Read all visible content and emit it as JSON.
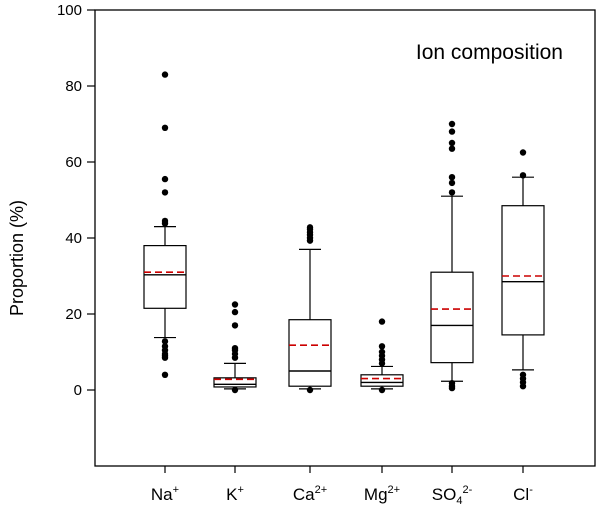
{
  "chart_data": {
    "type": "box",
    "title": "Ion composition",
    "xlabel": "",
    "ylabel": "Proportion (%)",
    "ylim": [
      -20,
      100
    ],
    "yticks": [
      0,
      20,
      40,
      60,
      80,
      100
    ],
    "grid": false,
    "median_color": "#000000",
    "mean_color": "#cc0000",
    "categories": [
      {
        "base": "Na",
        "sup": "+",
        "sub": ""
      },
      {
        "base": "K",
        "sup": "+",
        "sub": ""
      },
      {
        "base": "Ca",
        "sup": "2+",
        "sub": ""
      },
      {
        "base": "Mg",
        "sup": "2+",
        "sub": ""
      },
      {
        "base": "SO",
        "sub": "4",
        "sup": "2-"
      },
      {
        "base": "Cl",
        "sup": "-",
        "sub": ""
      }
    ],
    "boxes": [
      {
        "q1": 21.5,
        "median": 30.3,
        "mean": 31.0,
        "q3": 38.0,
        "whisker_low": 13.8,
        "whisker_high": 43.0,
        "outliers": [
          83.0,
          69.0,
          55.5,
          52.0,
          44.5,
          43.8,
          12.8,
          11.5,
          10.5,
          9.5,
          9.0,
          8.5,
          4.0
        ]
      },
      {
        "q1": 0.8,
        "median": 1.5,
        "mean": 2.8,
        "q3": 3.2,
        "whisker_low": 0.3,
        "whisker_high": 7.0,
        "outliers": [
          22.5,
          20.5,
          17.0,
          11.0,
          10.5,
          9.5,
          8.5,
          0.0
        ]
      },
      {
        "q1": 1.0,
        "median": 5.0,
        "mean": 11.8,
        "q3": 18.5,
        "whisker_low": 0.3,
        "whisker_high": 37.0,
        "outliers": [
          42.8,
          42.3,
          41.5,
          40.8,
          40.0,
          39.3,
          0.0
        ]
      },
      {
        "q1": 1.0,
        "median": 2.0,
        "mean": 3.0,
        "q3": 4.0,
        "whisker_low": 0.3,
        "whisker_high": 6.2,
        "outliers": [
          18.0,
          11.5,
          10.0,
          9.0,
          8.0,
          7.0,
          0.0
        ]
      },
      {
        "q1": 7.2,
        "median": 17.0,
        "mean": 21.3,
        "q3": 31.0,
        "whisker_low": 2.3,
        "whisker_high": 51.0,
        "outliers": [
          70.0,
          68.0,
          65.0,
          63.5,
          56.0,
          54.5,
          52.0,
          1.8,
          1.0,
          0.5
        ]
      },
      {
        "q1": 14.5,
        "median": 28.5,
        "mean": 30.0,
        "q3": 48.5,
        "whisker_low": 5.3,
        "whisker_high": 56.0,
        "outliers": [
          62.5,
          56.5,
          4.0,
          3.0,
          2.0,
          1.0
        ]
      }
    ]
  }
}
